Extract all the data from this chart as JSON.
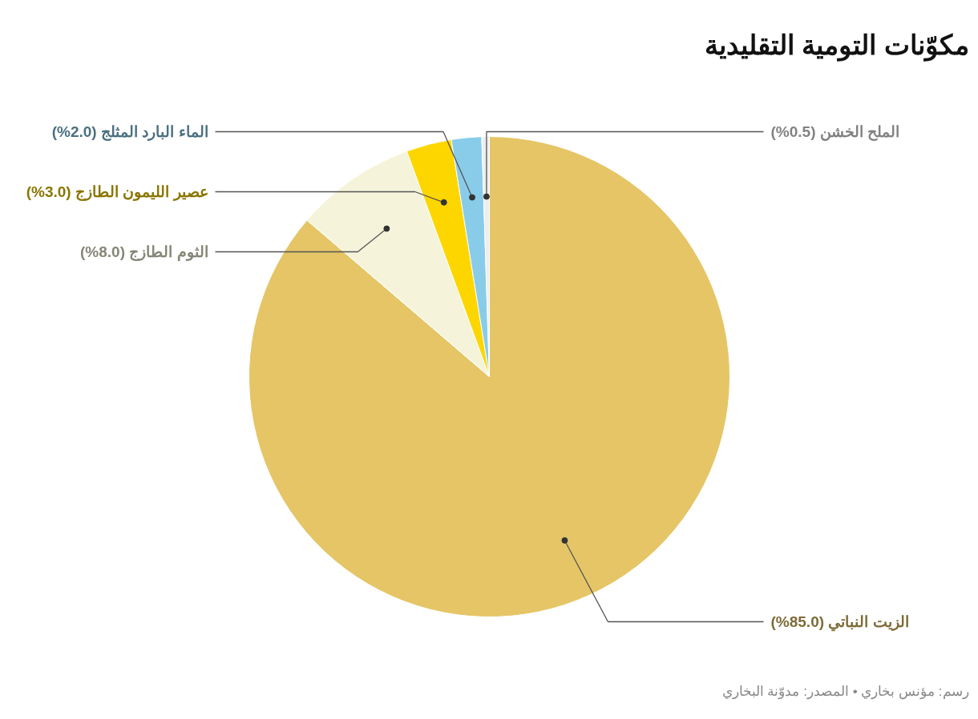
{
  "chart_data": {
    "type": "pie",
    "title": "مكوّنات التومية التقليدية",
    "categories": [
      "الزيت النباتي",
      "الثوم الطازج",
      "عصير الليمون الطازج",
      "الماء البارد المثلج",
      "الملح الخشن"
    ],
    "values": [
      85.0,
      8.0,
      3.0,
      2.0,
      0.5
    ],
    "value_labels": [
      "(85.0%)",
      "(8.0%)",
      "(3.0%)",
      "(2.0%)",
      "(0.5%)"
    ],
    "colors": [
      "#e5c566",
      "#f5f4da",
      "#fdd600",
      "#89cce9",
      "#eeeeee"
    ],
    "annotations": [
      "رسم: مؤنس بخاري • المصدر: مدوّنة البخاري"
    ]
  }
}
